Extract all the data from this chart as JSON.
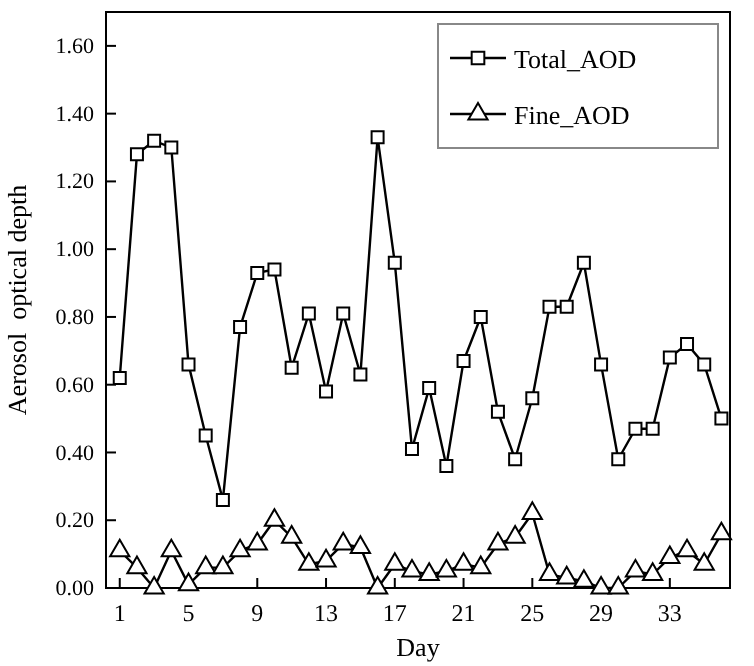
{
  "chart_data": {
    "type": "line",
    "xlabel": "Day",
    "ylabel": "Aerosol  optical depth",
    "x": [
      1,
      2,
      3,
      4,
      5,
      6,
      7,
      8,
      9,
      10,
      11,
      12,
      13,
      14,
      15,
      16,
      17,
      18,
      19,
      20,
      21,
      22,
      23,
      24,
      25,
      26,
      27,
      28,
      29,
      30,
      31,
      32,
      33,
      34,
      35,
      36
    ],
    "series": [
      {
        "name": "Total_AOD",
        "color": "#000000",
        "marker": "square",
        "values": [
          0.62,
          1.28,
          1.32,
          1.3,
          0.66,
          0.45,
          0.26,
          0.77,
          0.93,
          0.94,
          0.65,
          0.81,
          0.58,
          0.81,
          0.63,
          1.33,
          0.96,
          0.41,
          0.59,
          0.36,
          0.67,
          0.8,
          0.52,
          0.38,
          0.56,
          0.83,
          0.83,
          0.96,
          0.66,
          0.38,
          0.47,
          0.47,
          0.68,
          0.72,
          0.66,
          0.5
        ]
      },
      {
        "name": "Fine_AOD",
        "color": "#000000",
        "marker": "triangle",
        "values": [
          0.11,
          0.06,
          0.0,
          0.11,
          0.01,
          0.06,
          0.06,
          0.11,
          0.13,
          0.2,
          0.15,
          0.07,
          0.08,
          0.13,
          0.12,
          0.0,
          0.07,
          0.05,
          0.04,
          0.05,
          0.07,
          0.06,
          0.13,
          0.15,
          0.22,
          0.04,
          0.03,
          0.02,
          0.0,
          0.0,
          0.05,
          0.04,
          0.09,
          0.11,
          0.07,
          0.16
        ]
      }
    ],
    "xlim": [
      0.2,
      36.5
    ],
    "xticks": [
      1,
      5,
      9,
      13,
      17,
      21,
      25,
      29,
      33
    ],
    "ylim": [
      0,
      1.7
    ],
    "yticks": [
      {
        "value": 0,
        "label": "0.00"
      },
      {
        "value": 0.2,
        "label": "0.20"
      },
      {
        "value": 0.4,
        "label": "0.40"
      },
      {
        "value": 0.6,
        "label": "0.60"
      },
      {
        "value": 0.8,
        "label": "0.80"
      },
      {
        "value": 1.0,
        "label": "1.00"
      },
      {
        "value": 1.2,
        "label": "1.20"
      },
      {
        "value": 1.4,
        "label": "1.40"
      },
      {
        "value": 1.6,
        "label": "1.60"
      }
    ],
    "legend": "top right",
    "grid": false,
    "line_style": "solid"
  }
}
